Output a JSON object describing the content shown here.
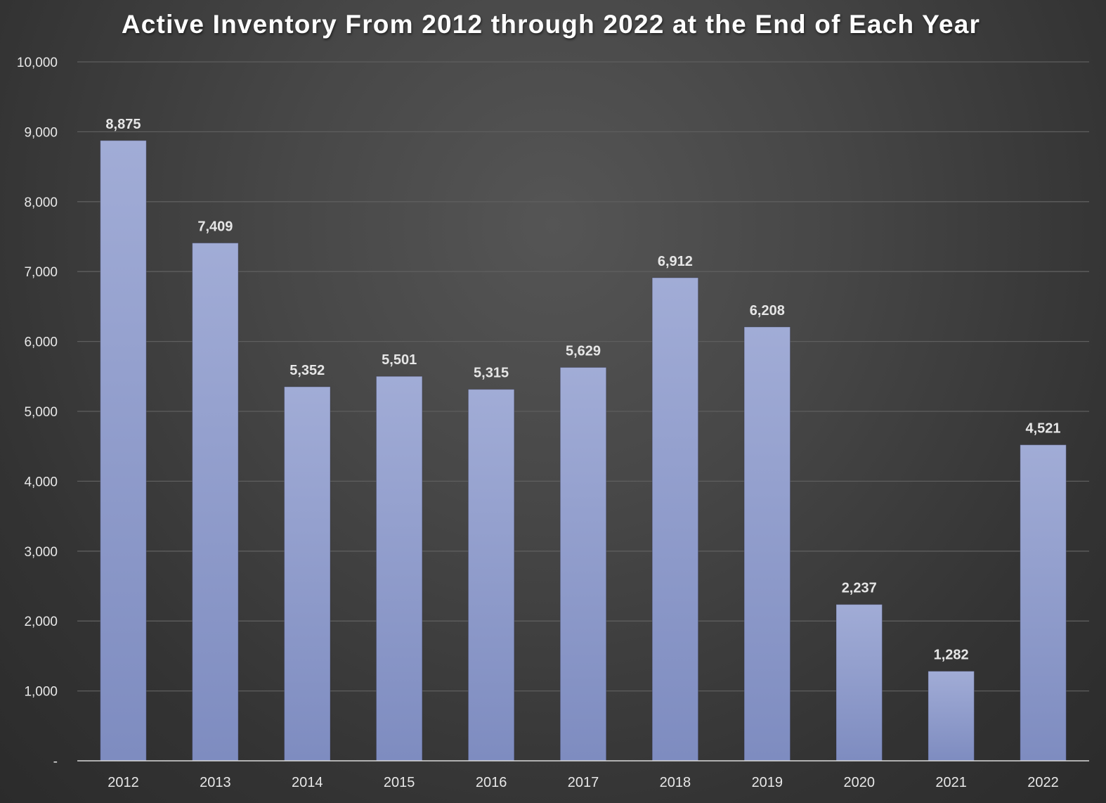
{
  "chart_data": {
    "type": "bar",
    "title": "Active Inventory From 2012 through 2022 at the End of Each Year",
    "xlabel": "",
    "ylabel": "",
    "categories": [
      "2012",
      "2013",
      "2014",
      "2015",
      "2016",
      "2017",
      "2018",
      "2019",
      "2020",
      "2021",
      "2022"
    ],
    "values": [
      8875,
      7409,
      5352,
      5501,
      5315,
      5629,
      6912,
      6208,
      2237,
      1282,
      4521
    ],
    "data_labels": [
      "8,875",
      "7,409",
      "5,352",
      "5,501",
      "5,315",
      "5,629",
      "6,912",
      "6,208",
      "2,237",
      "1,282",
      "4,521"
    ],
    "ylim": [
      0,
      10000
    ],
    "y_ticks": [
      0,
      1000,
      2000,
      3000,
      4000,
      5000,
      6000,
      7000,
      8000,
      9000,
      10000
    ],
    "y_tick_labels": [
      "-",
      "1,000",
      "2,000",
      "3,000",
      "4,000",
      "5,000",
      "6,000",
      "7,000",
      "8,000",
      "9,000",
      "10,000"
    ],
    "grid": true,
    "legend": "none",
    "colors": {
      "bar_top": "#a1acd6",
      "bar_bottom": "#7e8cc0",
      "background": "#444444",
      "gridline": "#5e5e5e",
      "axis_line": "#d9d9d9",
      "text": "#e8e8e8"
    }
  }
}
